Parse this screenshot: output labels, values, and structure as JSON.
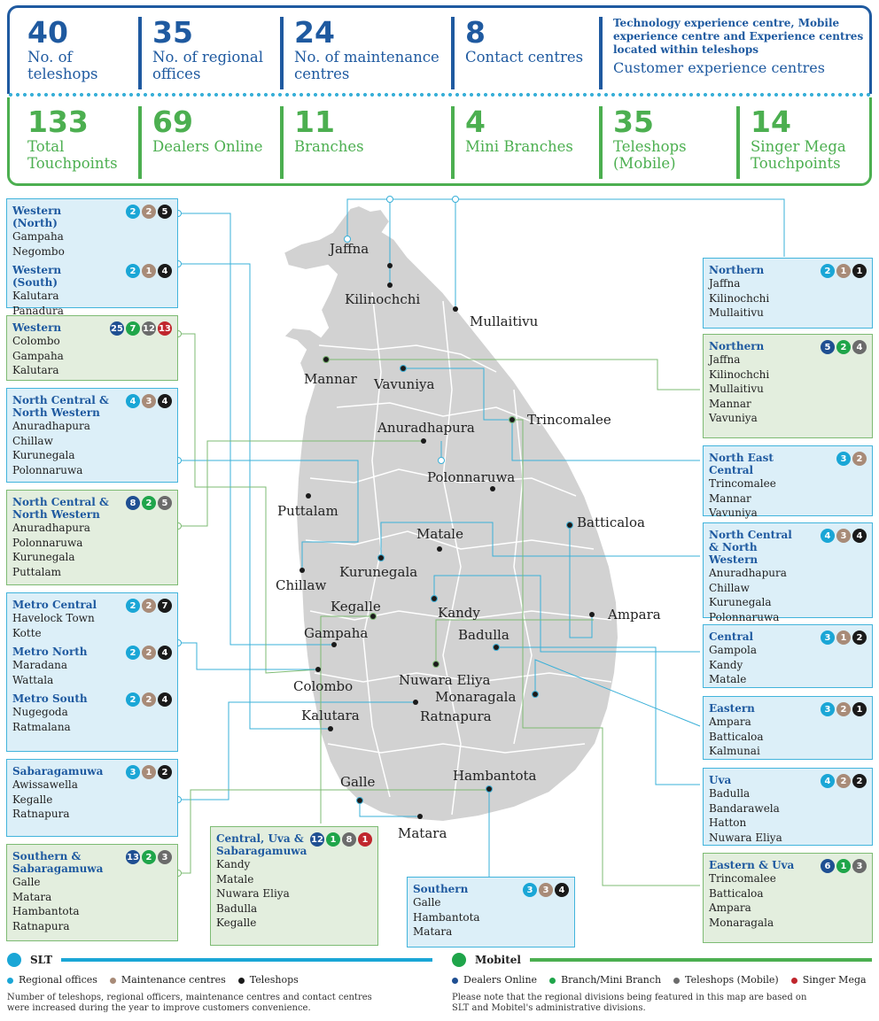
{
  "stats_slt": [
    {
      "num": "40",
      "label": "No. of\nteleshops"
    },
    {
      "num": "35",
      "label": "No. of regional\noffices"
    },
    {
      "num": "24",
      "label": "No. of maintenance\ncentres"
    },
    {
      "num": "8",
      "label": "Contact centres"
    },
    {
      "num": "",
      "small": "Technology experience centre, Mobile experience centre and Experience centres located within teleshops",
      "label": "Customer experience centres"
    }
  ],
  "stats_mobitel": [
    {
      "num": "133",
      "label": "Total\nTouchpoints"
    },
    {
      "num": "69",
      "label": "Dealers Online"
    },
    {
      "num": "11",
      "label": "Branches"
    },
    {
      "num": "4",
      "label": "Mini Branches"
    },
    {
      "num": "35",
      "label": "Teleshops\n(Mobile)"
    },
    {
      "num": "14",
      "label": "Singer Mega\nTouchpoints"
    }
  ],
  "cities": [
    "Jaffna",
    "Kilinochchi",
    "Mullaitivu",
    "Mannar",
    "Vavuniya",
    "Trincomalee",
    "Anuradhapura",
    "Polonnaruwa",
    "Puttalam",
    "Batticaloa",
    "Matale",
    "Kurunegala",
    "Chillaw",
    "Kegalle",
    "Kandy",
    "Ampara",
    "Gampaha",
    "Badulla",
    "Colombo",
    "Nuwara Eliya",
    "Monaragala",
    "Kalutara",
    "Ratnapura",
    "Galle",
    "Hambantota",
    "Matara"
  ],
  "left_boxes": [
    {
      "type": "slt",
      "sections": [
        {
          "title": "Western (North)",
          "badges": [
            [
              "2",
              "cyan"
            ],
            [
              "2",
              "tan"
            ],
            [
              "5",
              "blk"
            ]
          ],
          "items": [
            "Gampaha",
            "Negombo"
          ]
        },
        {
          "title": "Western (South)",
          "badges": [
            [
              "2",
              "cyan"
            ],
            [
              "1",
              "tan"
            ],
            [
              "4",
              "blk"
            ]
          ],
          "items": [
            "Kalutara",
            "Panadura"
          ]
        }
      ]
    },
    {
      "type": "mob",
      "sections": [
        {
          "title": "Western",
          "badges": [
            [
              "25",
              "navy"
            ],
            [
              "7",
              "grn"
            ],
            [
              "12",
              "gry"
            ],
            [
              "13",
              "red"
            ]
          ],
          "items": [
            "Colombo",
            "Gampaha",
            "Kalutara"
          ]
        }
      ]
    },
    {
      "type": "slt",
      "sections": [
        {
          "title": "North Central & North Western",
          "badges": [
            [
              "4",
              "cyan"
            ],
            [
              "3",
              "tan"
            ],
            [
              "4",
              "blk"
            ]
          ],
          "items": [
            "Anuradhapura",
            "Chillaw",
            "Kurunegala",
            "Polonnaruwa"
          ]
        }
      ]
    },
    {
      "type": "mob",
      "sections": [
        {
          "title": "North Central & North Western",
          "badges": [
            [
              "8",
              "navy"
            ],
            [
              "2",
              "grn"
            ],
            [
              "5",
              "gry"
            ]
          ],
          "items": [
            "Anuradhapura",
            "Polonnaruwa",
            "Kurunegala",
            "Puttalam"
          ]
        }
      ]
    },
    {
      "type": "slt",
      "sections": [
        {
          "title": "Metro Central",
          "badges": [
            [
              "2",
              "cyan"
            ],
            [
              "2",
              "tan"
            ],
            [
              "7",
              "blk"
            ]
          ],
          "items": [
            "Havelock Town",
            "Kotte"
          ]
        },
        {
          "title": "Metro North",
          "badges": [
            [
              "2",
              "cyan"
            ],
            [
              "2",
              "tan"
            ],
            [
              "4",
              "blk"
            ]
          ],
          "items": [
            "Maradana",
            "Wattala"
          ]
        },
        {
          "title": "Metro South",
          "badges": [
            [
              "2",
              "cyan"
            ],
            [
              "2",
              "tan"
            ],
            [
              "4",
              "blk"
            ]
          ],
          "items": [
            "Nugegoda",
            "Ratmalana"
          ]
        }
      ]
    },
    {
      "type": "slt",
      "sections": [
        {
          "title": "Sabaragamuwa",
          "badges": [
            [
              "3",
              "cyan"
            ],
            [
              "1",
              "tan"
            ],
            [
              "2",
              "blk"
            ]
          ],
          "items": [
            "Awissawella",
            "Kegalle",
            "Ratnapura"
          ]
        }
      ]
    },
    {
      "type": "mob",
      "sections": [
        {
          "title": "Southern & Sabaragamuwa",
          "badges": [
            [
              "13",
              "navy"
            ],
            [
              "2",
              "grn"
            ],
            [
              "3",
              "gry"
            ]
          ],
          "items": [
            "Galle",
            "Matara",
            "Hambantota",
            "Ratnapura"
          ]
        }
      ]
    }
  ],
  "right_boxes": [
    {
      "type": "slt",
      "sections": [
        {
          "title": "Northern",
          "badges": [
            [
              "2",
              "cyan"
            ],
            [
              "1",
              "tan"
            ],
            [
              "1",
              "blk"
            ]
          ],
          "items": [
            "Jaffna",
            "Kilinochchi",
            "Mullaitivu"
          ]
        }
      ]
    },
    {
      "type": "mob",
      "sections": [
        {
          "title": "Northern",
          "badges": [
            [
              "5",
              "navy"
            ],
            [
              "2",
              "grn"
            ],
            [
              "4",
              "gry"
            ]
          ],
          "items": [
            "Jaffna",
            "Kilinochchi",
            "Mullaitivu",
            "Mannar",
            "Vavuniya"
          ]
        }
      ]
    },
    {
      "type": "slt",
      "sections": [
        {
          "title": "North East Central",
          "badges": [
            [
              "3",
              "cyan"
            ],
            [
              "2",
              "tan"
            ]
          ],
          "items": [
            "Trincomalee",
            "Mannar",
            "Vavuniya"
          ]
        }
      ]
    },
    {
      "type": "slt",
      "sections": [
        {
          "title": "North Central & North Western",
          "badges": [
            [
              "4",
              "cyan"
            ],
            [
              "3",
              "tan"
            ],
            [
              "4",
              "blk"
            ]
          ],
          "items": [
            "Anuradhapura",
            "Chillaw",
            "Kurunegala",
            "Polonnaruwa"
          ]
        }
      ]
    },
    {
      "type": "slt",
      "sections": [
        {
          "title": "Central",
          "badges": [
            [
              "3",
              "cyan"
            ],
            [
              "1",
              "tan"
            ],
            [
              "2",
              "blk"
            ]
          ],
          "items": [
            "Gampola",
            "Kandy",
            "Matale"
          ]
        }
      ]
    },
    {
      "type": "slt",
      "sections": [
        {
          "title": "Eastern",
          "badges": [
            [
              "3",
              "cyan"
            ],
            [
              "2",
              "tan"
            ],
            [
              "1",
              "blk"
            ]
          ],
          "items": [
            "Ampara",
            "Batticaloa",
            "Kalmunai"
          ]
        }
      ]
    },
    {
      "type": "slt",
      "sections": [
        {
          "title": "Uva",
          "badges": [
            [
              "4",
              "cyan"
            ],
            [
              "2",
              "tan"
            ],
            [
              "2",
              "blk"
            ]
          ],
          "items": [
            "Badulla",
            "Bandarawela",
            "Hatton",
            "Nuwara Eliya"
          ]
        }
      ]
    },
    {
      "type": "mob",
      "sections": [
        {
          "title": "Eastern & Uva",
          "badges": [
            [
              "6",
              "navy"
            ],
            [
              "1",
              "grn"
            ],
            [
              "3",
              "gry"
            ]
          ],
          "items": [
            "Trincomalee",
            "Batticaloa",
            "Ampara",
            "Monaragala"
          ]
        }
      ]
    }
  ],
  "bottom_boxes": [
    {
      "type": "mob",
      "sections": [
        {
          "title": "Central, Uva & Sabaragamuwa",
          "badges": [
            [
              "12",
              "navy"
            ],
            [
              "1",
              "grn"
            ],
            [
              "8",
              "gry"
            ],
            [
              "1",
              "red"
            ]
          ],
          "items": [
            "Kandy",
            "Matale",
            "Nuwara Eliya",
            "Badulla",
            "Kegalle"
          ]
        }
      ]
    },
    {
      "type": "slt",
      "sections": [
        {
          "title": "Southern",
          "badges": [
            [
              "3",
              "cyan"
            ],
            [
              "3",
              "tan"
            ],
            [
              "4",
              "blk"
            ]
          ],
          "items": [
            "Galle",
            "Hambantota",
            "Matara"
          ]
        }
      ]
    }
  ],
  "legend": {
    "slt_title": "SLT",
    "slt_items": [
      "Regional offices",
      "Maintenance centres",
      "Teleshops"
    ],
    "slt_colors": [
      "#1aa6d6",
      "#a88b78",
      "#1a1a1a"
    ],
    "mob_title": "Mobitel",
    "mob_items": [
      "Dealers Online",
      "Branch/Mini Branch",
      "Teleshops (Mobile)",
      "Singer Mega"
    ],
    "mob_colors": [
      "#1f4f92",
      "#1fa54a",
      "#6b6b6b",
      "#c0262d"
    ],
    "slt_note": "Number of teleshops, regional officers, maintenance centres and contact centres\nwere increased during the year to improve customers convenience.",
    "mob_note": "Please note that the regional divisions being featured in this map are based on\nSLT and Mobitel's administrative divisions."
  }
}
